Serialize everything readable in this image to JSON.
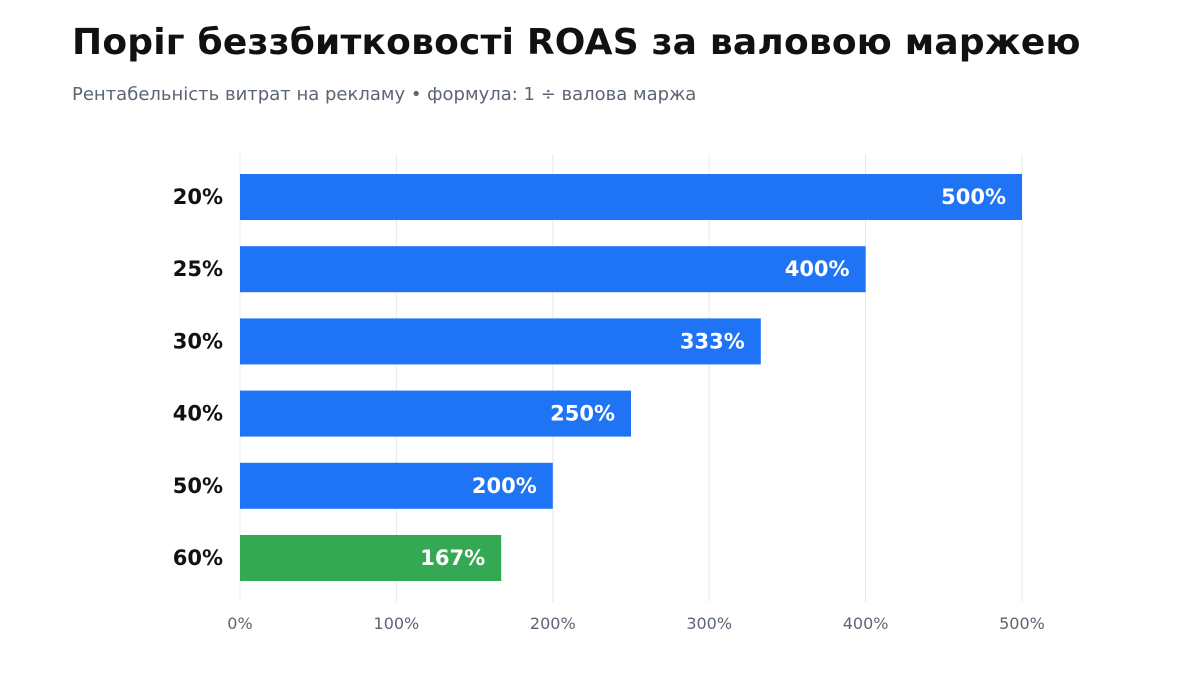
{
  "chart_data": {
    "type": "bar",
    "orientation": "horizontal",
    "title": "Поріг беззбитковості ROAS за валовою маржею",
    "subtitle": "Рентабельність витрат на рекламу  •  формула: 1 ÷ валова маржа",
    "categories": [
      "20%",
      "25%",
      "30%",
      "40%",
      "50%",
      "60%"
    ],
    "values": [
      500,
      400,
      333,
      250,
      200,
      167
    ],
    "value_labels": [
      "500%",
      "400%",
      "333%",
      "250%",
      "200%",
      "167%"
    ],
    "bar_colors": [
      "#1f74f5",
      "#1f74f5",
      "#1f74f5",
      "#1f74f5",
      "#1f74f5",
      "#34a853"
    ],
    "xlim": [
      0,
      500
    ],
    "x_ticks": [
      0,
      100,
      200,
      300,
      400,
      500
    ],
    "x_tick_labels": [
      "0%",
      "100%",
      "200%",
      "300%",
      "400%",
      "500%"
    ],
    "grid": true,
    "grid_color": "#e6e8eb",
    "legend": "none"
  }
}
